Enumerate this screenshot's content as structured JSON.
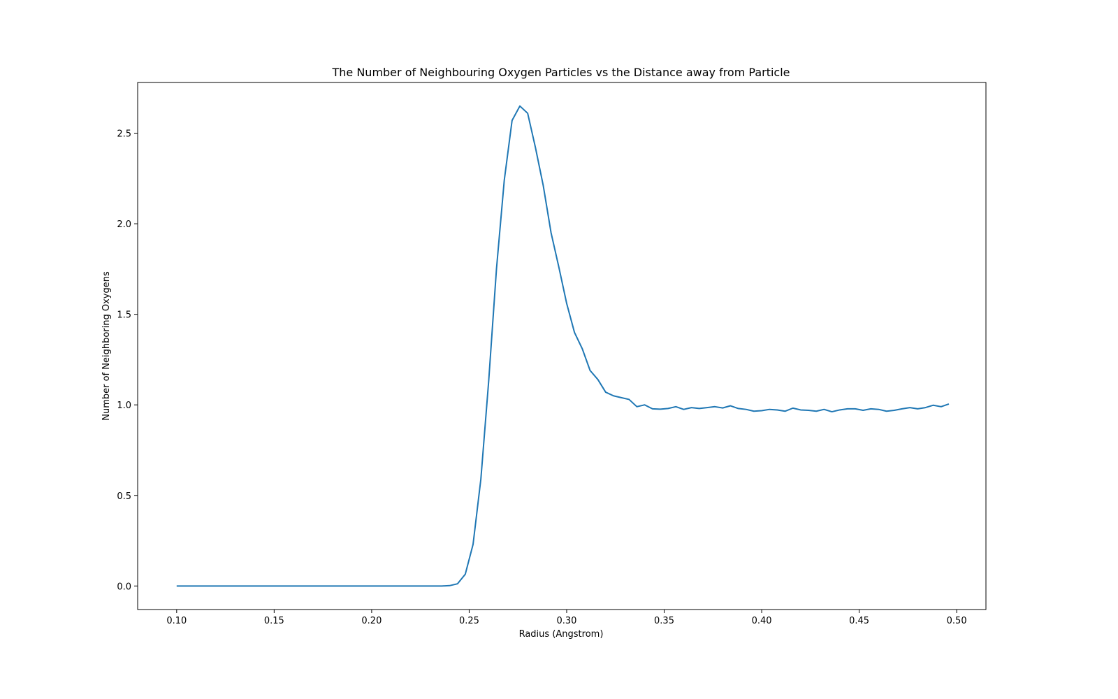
{
  "chart_data": {
    "type": "line",
    "title": "The Number of Neighbouring Oxygen Particles vs the Distance away from Particle",
    "xlabel": "Radius (Angstrom)",
    "ylabel": "Number of Neighboring Oxygens",
    "xlim": [
      0.08,
      0.515
    ],
    "ylim": [
      -0.13,
      2.78
    ],
    "xticks": [
      0.1,
      0.15,
      0.2,
      0.25,
      0.3,
      0.35,
      0.4,
      0.45,
      0.5
    ],
    "xtick_labels": [
      "0.10",
      "0.15",
      "0.20",
      "0.25",
      "0.30",
      "0.35",
      "0.40",
      "0.45",
      "0.50"
    ],
    "yticks": [
      0.0,
      0.5,
      1.0,
      1.5,
      2.0,
      2.5
    ],
    "ytick_labels": [
      "0.0",
      "0.5",
      "1.0",
      "1.5",
      "2.0",
      "2.5"
    ],
    "grid": false,
    "line_color": "#1f77b4",
    "series": [
      {
        "x": [
          0.1,
          0.104,
          0.108,
          0.112,
          0.116,
          0.12,
          0.124,
          0.128,
          0.132,
          0.136,
          0.14,
          0.144,
          0.148,
          0.152,
          0.156,
          0.16,
          0.164,
          0.168,
          0.172,
          0.176,
          0.18,
          0.184,
          0.188,
          0.192,
          0.196,
          0.2,
          0.204,
          0.208,
          0.212,
          0.216,
          0.22,
          0.224,
          0.228,
          0.232,
          0.236,
          0.24,
          0.244,
          0.248,
          0.252,
          0.256,
          0.26,
          0.264,
          0.268,
          0.272,
          0.276,
          0.28,
          0.284,
          0.288,
          0.292,
          0.296,
          0.3,
          0.304,
          0.308,
          0.312,
          0.316,
          0.32,
          0.324,
          0.328,
          0.332,
          0.336,
          0.34,
          0.344,
          0.348,
          0.352,
          0.356,
          0.36,
          0.364,
          0.368,
          0.372,
          0.376,
          0.38,
          0.384,
          0.388,
          0.392,
          0.396,
          0.4,
          0.404,
          0.408,
          0.412,
          0.416,
          0.42,
          0.424,
          0.428,
          0.432,
          0.436,
          0.44,
          0.444,
          0.448,
          0.452,
          0.456,
          0.46,
          0.464,
          0.468,
          0.472,
          0.476,
          0.48,
          0.484,
          0.488,
          0.492,
          0.496
        ],
        "values": [
          0.0,
          0.0,
          0.0,
          0.0,
          0.0,
          0.0,
          0.0,
          0.0,
          0.0,
          0.0,
          0.0,
          0.0,
          0.0,
          0.0,
          0.0,
          0.0,
          0.0,
          0.0,
          0.0,
          0.0,
          0.0,
          0.0,
          0.0,
          0.0,
          0.0,
          0.0,
          0.0,
          0.0,
          0.0,
          0.0,
          0.0,
          0.0,
          0.0,
          0.0,
          0.0,
          0.002,
          0.012,
          0.065,
          0.23,
          0.59,
          1.13,
          1.75,
          2.24,
          2.57,
          2.65,
          2.61,
          2.42,
          2.21,
          1.95,
          1.76,
          1.56,
          1.4,
          1.31,
          1.19,
          1.14,
          1.07,
          1.05,
          1.04,
          1.03,
          0.99,
          1.0,
          0.978,
          0.976,
          0.98,
          0.99,
          0.975,
          0.985,
          0.98,
          0.985,
          0.99,
          0.983,
          0.995,
          0.98,
          0.975,
          0.965,
          0.968,
          0.975,
          0.972,
          0.965,
          0.982,
          0.972,
          0.97,
          0.965,
          0.975,
          0.962,
          0.972,
          0.978,
          0.978,
          0.97,
          0.978,
          0.975,
          0.965,
          0.97,
          0.978,
          0.985,
          0.978,
          0.985,
          0.998,
          0.99,
          1.005
        ]
      }
    ]
  }
}
